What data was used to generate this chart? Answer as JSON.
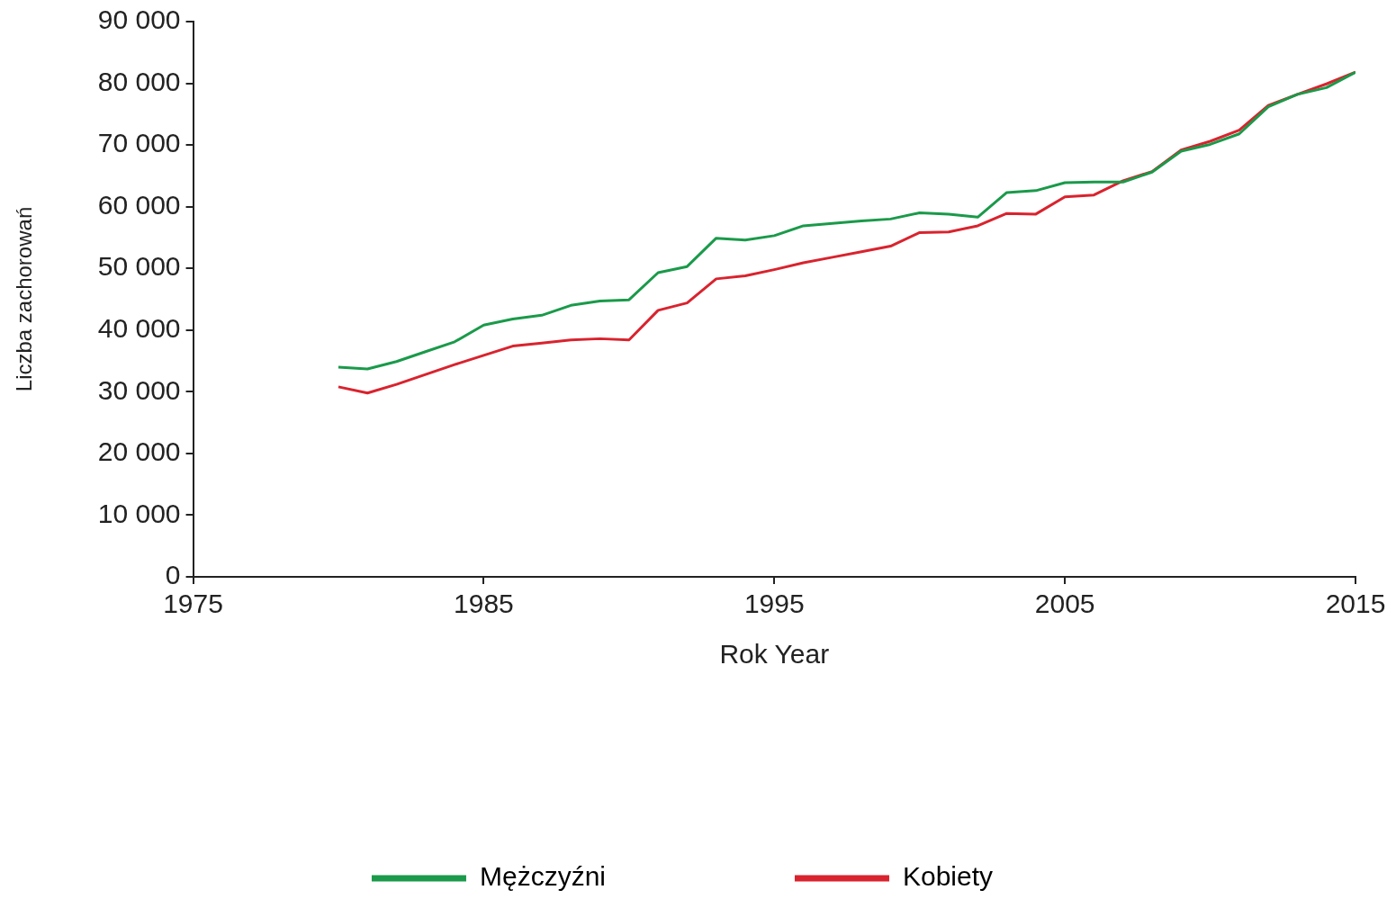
{
  "chart_data": {
    "type": "line",
    "xlabel": "Rok Year",
    "ylabel": "Liczba zachorowań",
    "x": [
      1980,
      1981,
      1982,
      1983,
      1984,
      1985,
      1986,
      1987,
      1988,
      1989,
      1990,
      1991,
      1992,
      1993,
      1994,
      1995,
      1996,
      1997,
      1998,
      1999,
      2000,
      2001,
      2002,
      2003,
      2004,
      2005,
      2006,
      2007,
      2008,
      2009,
      2010,
      2011,
      2012,
      2013,
      2014,
      2015
    ],
    "series": [
      {
        "name": "Mężczyźni",
        "color": "#1a9a4a",
        "values": [
          34000,
          33700,
          34900,
          36500,
          38100,
          40800,
          41800,
          42400,
          44000,
          44700,
          44900,
          49300,
          50300,
          54900,
          54600,
          55300,
          56900,
          57300,
          57700,
          58000,
          59000,
          58800,
          58300,
          62300,
          62600,
          63900,
          64000,
          64000,
          65600,
          69000,
          70100,
          71800,
          76200,
          78200,
          79300,
          81800
        ]
      },
      {
        "name": "Kobiety",
        "color": "#d9232e",
        "values": [
          30800,
          29800,
          31200,
          32800,
          34400,
          35900,
          37400,
          37900,
          38400,
          38600,
          38400,
          43200,
          44400,
          48300,
          48800,
          49800,
          50900,
          51800,
          52700,
          53600,
          55800,
          55900,
          56900,
          58900,
          58800,
          61600,
          61900,
          64200,
          65700,
          69200,
          70600,
          72400,
          76400,
          78200,
          79900,
          81800
        ]
      }
    ],
    "xlim": [
      1975,
      2015
    ],
    "xticks": [
      1975,
      1985,
      1995,
      2005,
      2015
    ],
    "ylim": [
      0,
      90000
    ],
    "yticks": [
      0,
      {
        "value": 10000,
        "label": "10 000"
      },
      {
        "value": 20000,
        "label": "20 000"
      },
      {
        "value": 30000,
        "label": "30 000"
      },
      {
        "value": 40000,
        "label": "40 000"
      },
      {
        "value": 50000,
        "label": "50 000"
      },
      {
        "value": 60000,
        "label": "60 000"
      },
      {
        "value": 70000,
        "label": "70 000"
      },
      {
        "value": 80000,
        "label": "80 000"
      },
      {
        "value": 90000,
        "label": "90 000"
      }
    ],
    "grid": false,
    "legend": "bottom",
    "marker": "none",
    "line_style": "solid"
  }
}
